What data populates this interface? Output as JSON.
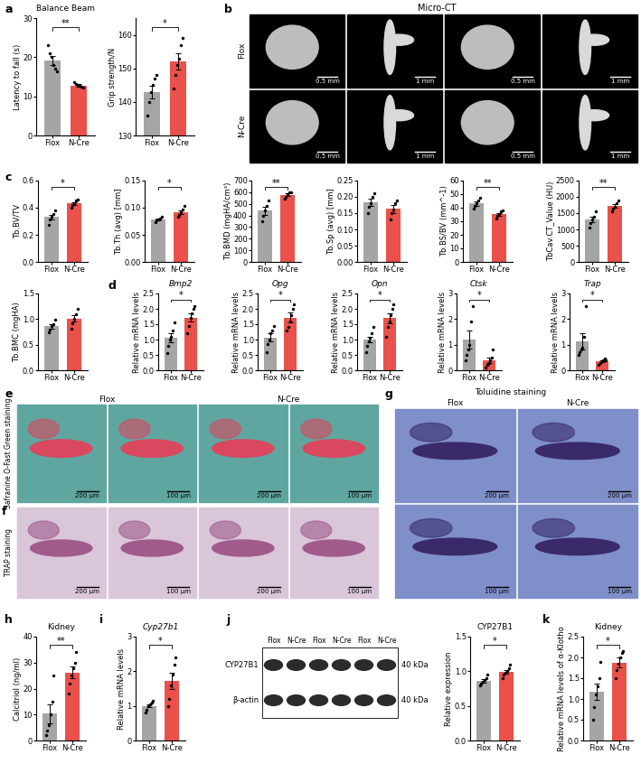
{
  "chart_data": [
    {
      "type": "bar",
      "title": "Balance Beam",
      "y_label": "Latency to fall (s)",
      "categories": [
        "Flox",
        "N-Cre"
      ],
      "values": [
        19.1,
        12.8
      ],
      "errors": [
        1.2,
        0.25
      ],
      "points": [
        [
          23,
          21,
          20,
          18,
          17,
          16.5
        ],
        [
          13.6,
          13.2,
          12.9,
          12.6,
          12.4,
          12.2
        ]
      ],
      "colors": [
        "#a5a5a5",
        "#e9514a"
      ],
      "ylim": [
        0,
        30
      ],
      "yticks": [
        0,
        10,
        20,
        30
      ],
      "annotation": "**"
    },
    {
      "type": "bar",
      "y_label": "Grip strength/N",
      "categories": [
        "Flox",
        "N-Cre"
      ],
      "values": [
        143,
        152
      ],
      "errors": [
        1.9,
        2.4
      ],
      "points": [
        [
          136,
          140,
          143,
          145,
          147,
          148
        ],
        [
          144,
          148,
          151,
          153,
          157,
          159
        ]
      ],
      "colors": [
        "#a5a5a5",
        "#e9514a"
      ],
      "ylim": [
        130,
        165
      ],
      "yticks": [
        130,
        140,
        150,
        160
      ],
      "annotation": "*"
    },
    {
      "type": "bar",
      "y_label": "Tb.BV/TV",
      "categories": [
        "Flox",
        "N-Cre"
      ],
      "values": [
        0.33,
        0.43
      ],
      "errors": [
        0.018,
        0.012
      ],
      "points": [
        [
          0.27,
          0.31,
          0.33,
          0.35,
          0.38
        ],
        [
          0.4,
          0.42,
          0.43,
          0.45,
          0.46
        ]
      ],
      "colors": [
        "#a5a5a5",
        "#e9514a"
      ],
      "ylim": [
        0,
        0.6
      ],
      "yticks": [
        0.0,
        0.2,
        0.4,
        0.6
      ],
      "annotation": "*"
    },
    {
      "type": "bar",
      "y_label": "Tb.Th (avg) [mm]",
      "categories": [
        "Flox",
        "N-Cre"
      ],
      "values": [
        0.078,
        0.092
      ],
      "errors": [
        0.0017,
        0.0035
      ],
      "points": [
        [
          0.073,
          0.076,
          0.078,
          0.08,
          0.083
        ],
        [
          0.083,
          0.087,
          0.091,
          0.097,
          0.103
        ]
      ],
      "colors": [
        "#a5a5a5",
        "#e9514a"
      ],
      "ylim": [
        0,
        0.15
      ],
      "yticks": [
        {
          "value": 0,
          "label": "0.00"
        },
        0.05,
        {
          "value": 0.1,
          "label": "0.10"
        },
        0.15
      ],
      "annotation": "*"
    },
    {
      "type": "bar",
      "y_label": "Tb.BMD (mgHA/cm³)",
      "categories": [
        "Flox",
        "N-Cre"
      ],
      "values": [
        440,
        576
      ],
      "errors": [
        32,
        12
      ],
      "points": [
        [
          350,
          400,
          440,
          480,
          530
        ],
        [
          545,
          560,
          580,
          595,
          600
        ]
      ],
      "colors": [
        "#a5a5a5",
        "#e9514a"
      ],
      "ylim": [
        0,
        700
      ],
      "yticks": [
        0,
        100,
        200,
        300,
        400,
        500,
        600,
        700
      ],
      "annotation": "**"
    },
    {
      "type": "bar",
      "y_label": "Tb.Sp (avg) [mm]",
      "categories": [
        "Flox",
        "N-Cre"
      ],
      "values": [
        0.183,
        0.163
      ],
      "errors": [
        0.011,
        0.012
      ],
      "points": [
        [
          0.15,
          0.17,
          0.18,
          0.2,
          0.21
        ],
        [
          0.13,
          0.15,
          0.16,
          0.18,
          0.19
        ]
      ],
      "colors": [
        "#a5a5a5",
        "#e9514a"
      ],
      "ylim": [
        0,
        0.25
      ],
      "yticks": [
        {
          "value": 0,
          "label": "0.00"
        },
        0.05,
        {
          "value": 0.1,
          "label": "0.10"
        },
        0.15,
        {
          "value": 0.2,
          "label": "0.20"
        },
        0.25
      ]
    },
    {
      "type": "bar",
      "y_label": "Tb.BS/BV (mm^-1)",
      "categories": [
        "Flox",
        "N-Cre"
      ],
      "values": [
        43,
        35
      ],
      "errors": [
        1.4,
        1.1
      ],
      "points": [
        [
          39,
          41,
          43,
          45,
          47
        ],
        [
          32,
          34,
          35,
          37,
          38
        ]
      ],
      "colors": [
        "#a5a5a5",
        "#e9514a"
      ],
      "ylim": [
        0,
        60
      ],
      "yticks": [
        0,
        10,
        20,
        30,
        40,
        50,
        60
      ],
      "annotation": "**"
    },
    {
      "type": "bar",
      "y_label": "TbCav.CT_Value (HU)",
      "categories": [
        "Flox",
        "N-Cre"
      ],
      "values": [
        1300,
        1720
      ],
      "errors": [
        85,
        60
      ],
      "points": [
        [
          1050,
          1200,
          1300,
          1400,
          1550
        ],
        [
          1550,
          1650,
          1700,
          1800,
          1900
        ]
      ],
      "colors": [
        "#a5a5a5",
        "#e9514a"
      ],
      "ylim": [
        0,
        2500
      ],
      "yticks": [
        0,
        500,
        1000,
        1500,
        2000,
        2500
      ],
      "annotation": "**"
    },
    {
      "type": "bar",
      "y_label": "Tb.BMC (mgHA)",
      "categories": [
        "Flox",
        "N-Cre"
      ],
      "values": [
        0.86,
        1.01
      ],
      "errors": [
        0.04,
        0.06
      ],
      "points": [
        [
          0.74,
          0.8,
          0.86,
          0.9,
          0.98
        ],
        [
          0.82,
          0.92,
          1.0,
          1.1,
          1.2
        ]
      ],
      "colors": [
        "#a5a5a5",
        "#e9514a"
      ],
      "ylim": [
        0,
        1.5
      ],
      "yticks": [
        0.0,
        0.5,
        1.0,
        1.5
      ]
    },
    {
      "type": "bar",
      "title": "Bmp2",
      "y_label": "Relative mRNA levels",
      "categories": [
        "Flox",
        "N-Cre"
      ],
      "values": [
        1.05,
        1.72
      ],
      "errors": [
        0.15,
        0.14
      ],
      "points": [
        [
          0.55,
          0.8,
          1.0,
          1.1,
          1.3,
          1.55
        ],
        [
          1.2,
          1.45,
          1.7,
          1.85,
          2.0,
          2.1
        ]
      ],
      "colors": [
        "#a5a5a5",
        "#e9514a"
      ],
      "ylim": [
        0,
        2.5
      ],
      "yticks": [
        0.0,
        0.5,
        1.0,
        1.5,
        2.0,
        2.5
      ],
      "annotation": "*"
    },
    {
      "type": "bar",
      "title": "Opg",
      "y_label": "Relative mRNA levels",
      "categories": [
        "Flox",
        "N-Cre"
      ],
      "values": [
        1.07,
        1.72
      ],
      "errors": [
        0.13,
        0.15
      ],
      "points": [
        [
          0.6,
          0.85,
          1.0,
          1.2,
          1.3,
          1.45
        ],
        [
          1.3,
          1.4,
          1.6,
          1.8,
          2.0,
          2.15
        ]
      ],
      "colors": [
        "#a5a5a5",
        "#e9514a"
      ],
      "ylim": [
        0,
        2.5
      ],
      "yticks": [
        0.0,
        0.5,
        1.0,
        1.5,
        2.0,
        2.5
      ],
      "annotation": "*"
    },
    {
      "type": "bar",
      "title": "Opn",
      "y_label": "Relative mRNA levels",
      "categories": [
        "Flox",
        "N-Cre"
      ],
      "values": [
        1.0,
        1.7
      ],
      "errors": [
        0.1,
        0.16
      ],
      "points": [
        [
          0.6,
          0.8,
          0.95,
          1.05,
          1.2,
          1.4
        ],
        [
          1.1,
          1.4,
          1.6,
          1.8,
          2.0,
          2.15
        ]
      ],
      "colors": [
        "#a5a5a5",
        "#e9514a"
      ],
      "ylim": [
        0,
        2.5
      ],
      "yticks": [
        0.0,
        0.5,
        1.0,
        1.5,
        2.0,
        2.5
      ],
      "annotation": "*"
    },
    {
      "type": "bar",
      "title": "Ctsk",
      "y_label": "Relative mRNA levels",
      "categories": [
        "Flox",
        "N-Cre"
      ],
      "values": [
        1.2,
        0.38
      ],
      "errors": [
        0.34,
        0.1
      ],
      "points": [
        [
          0.4,
          0.6,
          0.8,
          1.0,
          1.9,
          2.5
        ],
        [
          0.1,
          0.2,
          0.3,
          0.4,
          0.5,
          0.8
        ]
      ],
      "colors": [
        "#a5a5a5",
        "#e9514a"
      ],
      "ylim": [
        0,
        3
      ],
      "yticks": [
        0,
        1,
        2,
        3
      ],
      "annotation": "*"
    },
    {
      "type": "bar",
      "title": "Trap",
      "y_label": "Relative mRNA levels",
      "categories": [
        "Flox",
        "N-Cre"
      ],
      "values": [
        1.13,
        0.35
      ],
      "errors": [
        0.31,
        0.04
      ],
      "points": [
        [
          0.6,
          0.7,
          0.8,
          0.9,
          1.3,
          2.5
        ],
        [
          0.2,
          0.3,
          0.35,
          0.4,
          0.45,
          0.4
        ]
      ],
      "colors": [
        "#a5a5a5",
        "#e9514a"
      ],
      "ylim": [
        0,
        3
      ],
      "yticks": [
        0,
        1,
        2,
        3
      ],
      "annotation": "*"
    },
    {
      "type": "bar",
      "title": "Kidney",
      "y_label": "Calcitriol (ng/ml)",
      "categories": [
        "Flox",
        "N-Cre"
      ],
      "values": [
        10.3,
        26.2
      ],
      "errors": [
        3.6,
        2.3
      ],
      "points": [
        [
          2,
          4,
          6,
          10,
          15,
          25
        ],
        [
          18,
          22,
          25,
          28,
          30,
          34
        ]
      ],
      "colors": [
        "#a5a5a5",
        "#e9514a"
      ],
      "ylim": [
        0,
        40
      ],
      "yticks": [
        0,
        10,
        20,
        30,
        40
      ],
      "annotation": "**"
    },
    {
      "type": "bar",
      "title": "Cyp27b1",
      "y_label": "Relative mRNA levels",
      "categories": [
        "Flox",
        "N-Cre"
      ],
      "values": [
        1.0,
        1.72
      ],
      "errors": [
        0.04,
        0.23
      ],
      "points": [
        [
          0.8,
          0.9,
          1.0,
          1.05,
          1.1,
          1.15
        ],
        [
          1.0,
          1.2,
          1.6,
          1.9,
          2.2,
          2.4
        ]
      ],
      "colors": [
        "#a5a5a5",
        "#e9514a"
      ],
      "ylim": [
        0,
        3
      ],
      "yticks": [
        0,
        1,
        2,
        3
      ],
      "annotation": "*"
    },
    {
      "type": "bar",
      "title": "CYP27B1",
      "y_label": "Relative expression",
      "categories": [
        "Flox",
        "N-Cre"
      ],
      "values": [
        0.86,
        0.99
      ],
      "errors": [
        0.03,
        0.03
      ],
      "points": [
        [
          0.8,
          0.82,
          0.85,
          0.88,
          0.9,
          0.95
        ],
        [
          0.9,
          0.95,
          0.98,
          1.0,
          1.05,
          1.1
        ]
      ],
      "colors": [
        "#a5a5a5",
        "#e9514a"
      ],
      "ylim": [
        0,
        1.5
      ],
      "yticks": [
        0.0,
        0.5,
        1.0,
        1.5
      ],
      "annotation": "*"
    },
    {
      "type": "bar",
      "title": "Kidney",
      "y_label": "Relative mRNA levels of α-Klotho",
      "categories": [
        "Flox",
        "N-Cre"
      ],
      "values": [
        1.18,
        1.88
      ],
      "errors": [
        0.2,
        0.12
      ],
      "points": [
        [
          0.5,
          0.8,
          1.1,
          1.3,
          1.5,
          1.9
        ],
        [
          1.5,
          1.7,
          1.85,
          2.0,
          2.1,
          2.15
        ]
      ],
      "colors": [
        "#a5a5a5",
        "#e9514a"
      ],
      "ylim": [
        0,
        2.5
      ],
      "yticks": [
        0.0,
        0.5,
        1.0,
        1.5,
        2.0,
        2.5
      ],
      "annotation": "*"
    }
  ],
  "images": [
    {
      "type": "micro_ct",
      "title": "Micro-CT",
      "rows": [
        "Flox",
        "N-Cre"
      ],
      "scale_bars": [
        "0.5 mm",
        "1 mm",
        "0.5 mm",
        "1 mm",
        "0.5 mm",
        "1 mm",
        "0.5 mm",
        "1 mm"
      ]
    },
    {
      "type": "staining_row",
      "title": "Safranine O-Fast Green staining",
      "columns": [
        "Flox",
        "N-Cre"
      ],
      "scale_bars": [
        "200 µm",
        "100 µm",
        "200 µm",
        "100 µm"
      ]
    },
    {
      "type": "staining_row",
      "title": "TRAP staining",
      "scale_bars": [
        "200 µm",
        "100 µm",
        "200 µm",
        "100 µm"
      ]
    },
    {
      "type": "staining_grid",
      "title": "Toluidine staining",
      "columns": [
        "Flox",
        "N-Cre"
      ],
      "scale_bars": [
        "200 µm",
        "200 µm",
        "100 µm",
        "100 µm"
      ]
    },
    {
      "type": "western_blot",
      "lanes": [
        "Flox",
        "N-Cre",
        "Flox",
        "N-Cre",
        "Flox",
        "N-Cre"
      ],
      "bands": [
        "CYP27B1",
        "β-actin"
      ],
      "size_labels": [
        "40 kDa",
        "40 kDa"
      ]
    }
  ],
  "panel_labels": [
    "a",
    "b",
    "c",
    "d",
    "e",
    "f",
    "g",
    "h",
    "i",
    "j",
    "k"
  ]
}
